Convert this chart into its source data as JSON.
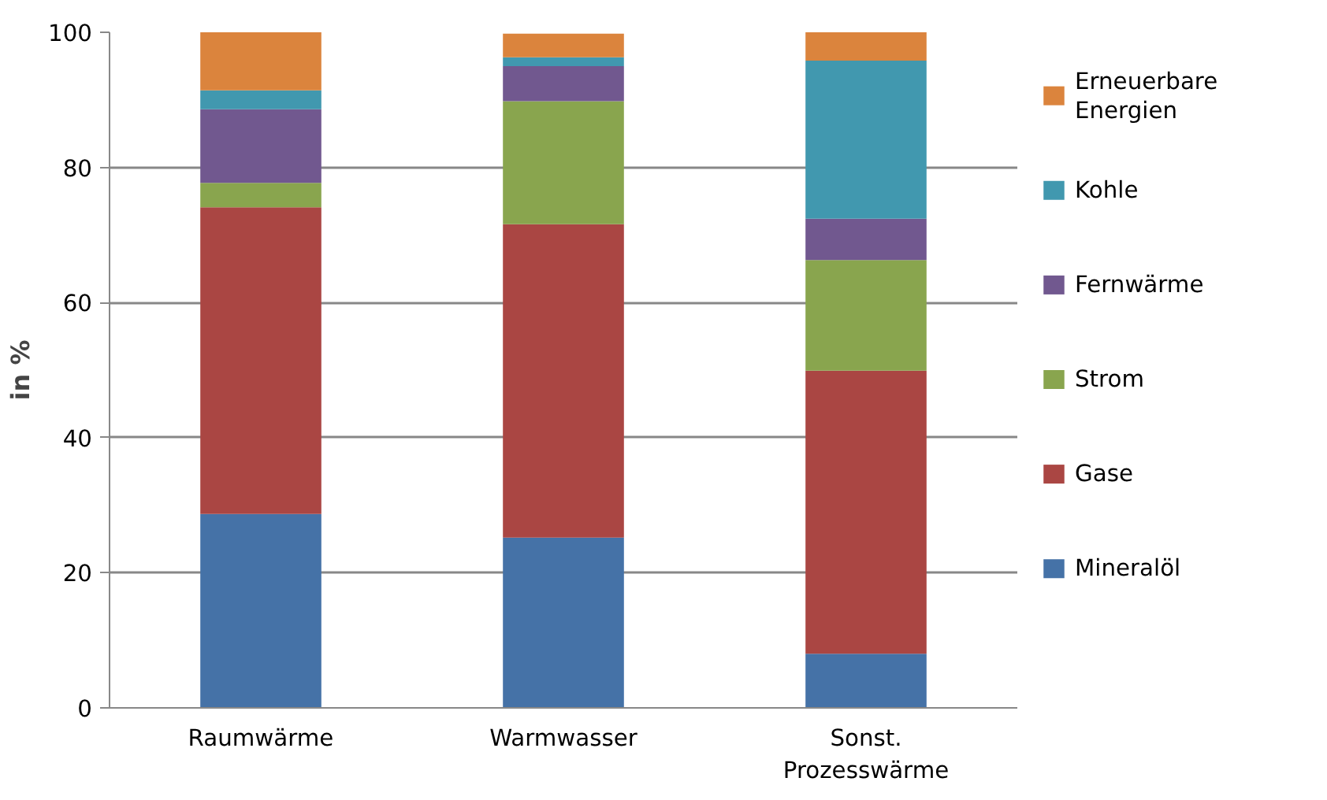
{
  "chart_data": {
    "type": "bar",
    "stacked": true,
    "ylabel": "in %",
    "categories": [
      "Raumwärme",
      "Warmwasser",
      "Sonst.\nProzesswärme"
    ],
    "series": [
      {
        "name": "Mineralöl",
        "color": "#4572a7",
        "values": [
          28.7,
          25.2,
          8.0
        ]
      },
      {
        "name": "Gase",
        "color": "#aa4643",
        "values": [
          45.4,
          46.4,
          41.9
        ]
      },
      {
        "name": "Strom",
        "color": "#89a54e",
        "values": [
          3.6,
          18.2,
          16.4
        ]
      },
      {
        "name": "Fernwärme",
        "color": "#71588f",
        "values": [
          10.9,
          5.2,
          6.1
        ]
      },
      {
        "name": "Kohle",
        "color": "#4198af",
        "values": [
          2.8,
          1.3,
          23.4
        ]
      },
      {
        "name": "Erneuerbare\nEnergien",
        "color": "#db843d",
        "values": [
          8.6,
          3.5,
          4.2
        ]
      }
    ],
    "ylim": [
      0,
      100
    ],
    "yticks": [
      0,
      20,
      40,
      60,
      80,
      100
    ],
    "grid": "y",
    "legend": "right"
  }
}
